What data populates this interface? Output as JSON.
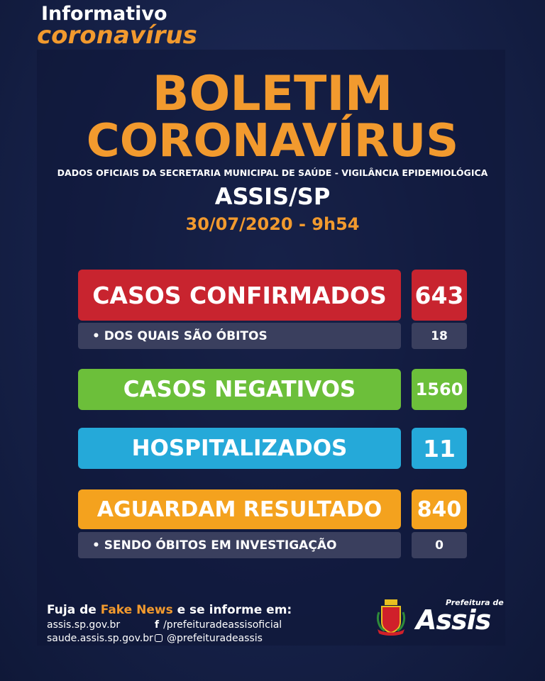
{
  "header": {
    "informativo": "Informativo",
    "coronavirus": "coronavírus"
  },
  "title": {
    "line1": "BOLETIM",
    "line2": "CORONAVÍRUS",
    "subtitle": "DADOS OFICIAIS DA SECRETARIA MUNICIPAL DE SAÚDE - VIGILÂNCIA EPIDEMIOLÓGICA",
    "city": "ASSIS/SP",
    "datetime": "30/07/2020 - 9h54"
  },
  "stats": {
    "confirmed": {
      "label": "CASOS CONFIRMADOS",
      "value": "643",
      "color": "#c8242f"
    },
    "deaths": {
      "label": "• DOS QUAIS SÃO ÓBITOS",
      "value": "18"
    },
    "negative": {
      "label": "CASOS NEGATIVOS",
      "value": "1560",
      "color": "#6cbf3a"
    },
    "hospitalized": {
      "label": "HOSPITALIZADOS",
      "value": "11",
      "color": "#25a9d9"
    },
    "awaiting": {
      "label": "AGUARDAM RESULTADO",
      "value": "840",
      "color": "#f4a21e"
    },
    "investigating": {
      "label": "• SENDO ÓBITOS EM INVESTIGAÇÃO",
      "value": "0"
    }
  },
  "footer": {
    "fuja": "Fuja de",
    "fake": "Fake News",
    "informe": "e se informe em:",
    "site1": "assis.sp.gov.br",
    "site2": "saude.assis.sp.gov.br",
    "facebook": "/prefeituradeassisoficial",
    "instagram": "@prefeituradeassis",
    "logo_small": "Prefeitura de",
    "logo_big": "Assis",
    "facebook_icon": "facebook-icon",
    "instagram_icon": "instagram-icon"
  }
}
